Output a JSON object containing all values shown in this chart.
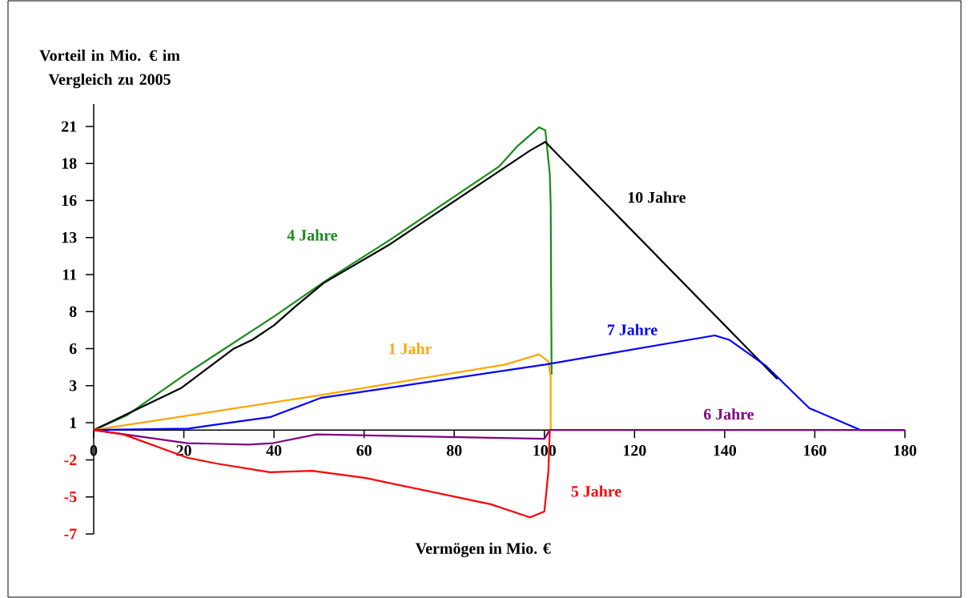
{
  "chart_data": {
    "type": "line",
    "xlabel": "Vermögen in Mio. €",
    "ylabel": "Vorteil in Mio. € im Vergleich zu 2005",
    "xlim": [
      0,
      180
    ],
    "ylim": [
      -7.14,
      22.4
    ],
    "xticks": [
      0,
      20,
      40,
      60,
      80,
      100,
      120,
      140,
      160,
      180
    ],
    "yticks": [
      {
        "value": -7.14,
        "label": "-7"
      },
      {
        "value": -4.59,
        "label": "-5"
      },
      {
        "value": -2.05,
        "label": "-2"
      },
      {
        "value": 0.5,
        "label": "1"
      },
      {
        "value": 3.05,
        "label": "3"
      },
      {
        "value": 5.59,
        "label": "6"
      },
      {
        "value": 8.14,
        "label": "8"
      },
      {
        "value": 10.68,
        "label": "11"
      },
      {
        "value": 13.23,
        "label": "13"
      },
      {
        "value": 15.77,
        "label": "16"
      },
      {
        "value": 18.32,
        "label": "18"
      },
      {
        "value": 20.86,
        "label": "21"
      }
    ],
    "series": [
      {
        "name": "4 Jahre",
        "color": "#1a8a1a",
        "x": [
          0,
          7.3,
          20.2,
          40.0,
          51.7,
          65.4,
          89.9,
          94.0,
          98.8,
          100.2,
          101.2,
          101.4,
          101.6
        ],
        "values": [
          0,
          1.0,
          3.8,
          7.8,
          10.3,
          13.0,
          18.1,
          19.5,
          20.8,
          20.6,
          17.6,
          15.5,
          3.8
        ]
      },
      {
        "name": "10 Jahre",
        "color": "#000000",
        "x": [
          0,
          19.5,
          31.1,
          35.2,
          40.0,
          44.8,
          51.0,
          65.4,
          96.8,
          100.2,
          151.7
        ],
        "values": [
          0,
          2.9,
          5.6,
          6.2,
          7.2,
          8.5,
          10.1,
          12.7,
          19.2,
          19.8,
          3.5
        ]
      },
      {
        "name": "1 Jahr",
        "color": "#ffa500",
        "x": [
          0,
          50.3,
          91.3,
          98.8,
          100.9,
          101.4,
          101.4
        ],
        "values": [
          0,
          2.4,
          4.5,
          5.2,
          4.7,
          3.6,
          0
        ]
      },
      {
        "name": "7 Jahre",
        "color": "#0000ff",
        "x": [
          0,
          21.0,
          39.3,
          50.3,
          100.2,
          137.8,
          141.0,
          149.2,
          158.8,
          170.2,
          180
        ],
        "values": [
          0,
          0.1,
          0.9,
          2.2,
          4.5,
          6.5,
          6.2,
          4.4,
          1.5,
          0,
          0
        ]
      },
      {
        "name": "6  Jahre",
        "color": "#800080",
        "x": [
          0,
          20.8,
          34.3,
          39.8,
          49.4,
          100.0,
          101.2,
          180
        ],
        "values": [
          0,
          -0.9,
          -1.0,
          -0.9,
          -0.3,
          -0.6,
          0,
          0
        ]
      },
      {
        "name": "5 Jahre",
        "color": "#ff0000",
        "x": [
          0,
          6.6,
          20.8,
          27.2,
          39.1,
          48.5,
          60.4,
          88.1,
          96.8,
          100.0,
          100.9,
          101.2
        ],
        "values": [
          0,
          -0.3,
          -1.9,
          -2.3,
          -2.9,
          -2.8,
          -3.3,
          -5.1,
          -6.0,
          -5.6,
          -2.8,
          0
        ]
      }
    ]
  }
}
